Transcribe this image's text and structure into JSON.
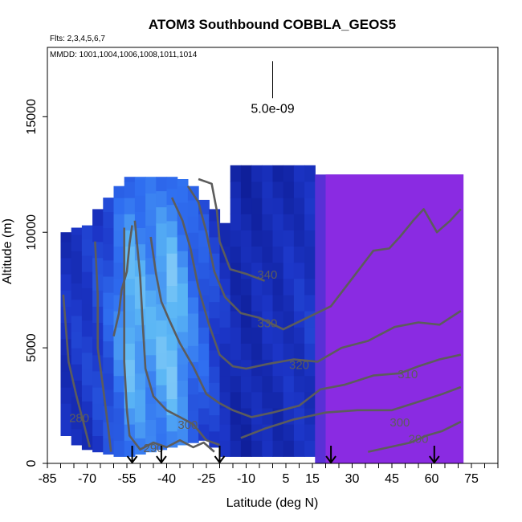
{
  "chart_data": {
    "type": "heatmap",
    "title": "ATOM3 Southbound COBBLA_GEOS5",
    "subtitle_flights": "Flts: 2,3,4,5,6,7",
    "subtitle_dates": "MMDD: 1001,1004,1006,1008,1011,1014",
    "xlabel": "Latitude (deg N)",
    "ylabel": "Altitude (m)",
    "xlim": [
      -85,
      85
    ],
    "ylim": [
      0,
      18000
    ],
    "x_ticks": [
      -85,
      -70,
      -55,
      -40,
      -25,
      -10,
      5,
      15,
      30,
      45,
      60,
      75
    ],
    "x_tick_labels": [
      "-85",
      "-70",
      "-55",
      "-40",
      "-25",
      "-10",
      "5",
      "15",
      "30",
      "45",
      "60",
      "75"
    ],
    "x_minor_ticks": [
      -80,
      -75,
      -65,
      -60,
      -50,
      -45,
      -35,
      -30,
      -20,
      -15,
      -5,
      0,
      10,
      20,
      25,
      35,
      40,
      50,
      55,
      65,
      70,
      80,
      85
    ],
    "y_ticks": [
      0,
      5000,
      10000,
      15000
    ],
    "y_tick_labels": [
      "0",
      "5000",
      "10000",
      "15000"
    ],
    "scale_bar_label": "5.0e-09",
    "scale_bar_lat": 0,
    "scale_bar_range": [
      15800,
      17400
    ],
    "profile_arrows_lat": [
      -53,
      -42,
      -20,
      22,
      61
    ],
    "colors": {
      "very_low": "#0f1f9a",
      "low": "#1c36c8",
      "mid": "#2f6ef0",
      "high": "#5ab6f5",
      "very_high": "#c8ecfb",
      "north": "#8a2be2",
      "contour": "#5c5c5c"
    },
    "contour_labels": [
      {
        "text": "340",
        "lat": -2,
        "alt": 8200
      },
      {
        "text": "330",
        "lat": -2,
        "alt": 6100
      },
      {
        "text": "320",
        "lat": 10,
        "alt": 4300
      },
      {
        "text": "310",
        "lat": 51,
        "alt": 3900
      },
      {
        "text": "300",
        "lat": -32,
        "alt": 1700
      },
      {
        "text": "300",
        "lat": 48,
        "alt": 1800
      },
      {
        "text": "290",
        "lat": -45,
        "alt": 700
      },
      {
        "text": "290",
        "lat": 55,
        "alt": 1100
      },
      {
        "text": "280",
        "lat": -73,
        "alt": 2000
      }
    ],
    "contours": [
      {
        "level": 280,
        "points": [
          [
            -79,
            7300
          ],
          [
            -77,
            4400
          ],
          [
            -74,
            2900
          ],
          [
            -71,
            1600
          ],
          [
            -69,
            700
          ]
        ]
      },
      {
        "level": 280,
        "points": [
          [
            -67,
            9600
          ],
          [
            -66,
            7300
          ],
          [
            -66,
            5000
          ],
          [
            -64,
            3300
          ],
          [
            -62,
            1500
          ],
          [
            -61,
            500
          ]
        ]
      },
      {
        "level": 290,
        "points": [
          [
            -56,
            10200
          ],
          [
            -56,
            7300
          ],
          [
            -56,
            4400
          ],
          [
            -55,
            2300
          ],
          [
            -54,
            1200
          ],
          [
            -50,
            600
          ],
          [
            -45,
            900
          ],
          [
            -40,
            700
          ],
          [
            -35,
            1000
          ],
          [
            -30,
            700
          ],
          [
            -26,
            900
          ],
          [
            -22,
            500
          ]
        ]
      },
      {
        "level": 290,
        "points": [
          [
            36,
            500
          ],
          [
            44,
            700
          ],
          [
            52,
            900
          ],
          [
            58,
            1200
          ],
          [
            64,
            1400
          ],
          [
            71,
            1800
          ]
        ]
      },
      {
        "level": 300,
        "points": [
          [
            -52,
            10500
          ],
          [
            -50,
            8100
          ],
          [
            -49,
            6000
          ],
          [
            -48,
            4100
          ],
          [
            -45,
            2900
          ],
          [
            -40,
            2300
          ],
          [
            -35,
            2000
          ],
          [
            -30,
            1700
          ],
          [
            -25,
            1000
          ],
          [
            -20,
            800
          ]
        ]
      },
      {
        "level": 300,
        "points": [
          [
            -12,
            1100
          ],
          [
            -3,
            1500
          ],
          [
            8,
            1900
          ],
          [
            20,
            2200
          ],
          [
            32,
            2300
          ],
          [
            45,
            2300
          ],
          [
            56,
            2700
          ],
          [
            64,
            3000
          ],
          [
            71,
            3300
          ]
        ]
      },
      {
        "level": 310,
        "points": [
          [
            -46,
            9800
          ],
          [
            -44,
            8200
          ],
          [
            -42,
            7000
          ],
          [
            -39,
            6200
          ],
          [
            -35,
            5200
          ],
          [
            -30,
            4200
          ],
          [
            -25,
            3000
          ],
          [
            -20,
            2600
          ],
          [
            -15,
            2300
          ],
          [
            -8,
            2000
          ],
          [
            0,
            2200
          ],
          [
            10,
            2500
          ],
          [
            18,
            3200
          ],
          [
            27,
            3400
          ],
          [
            38,
            3800
          ],
          [
            48,
            3900
          ],
          [
            55,
            4200
          ],
          [
            63,
            4500
          ],
          [
            71,
            4700
          ]
        ]
      },
      {
        "level": 320,
        "points": [
          [
            -38,
            11500
          ],
          [
            -34,
            10500
          ],
          [
            -31,
            9300
          ],
          [
            -28,
            7600
          ],
          [
            -24,
            6000
          ],
          [
            -20,
            4700
          ],
          [
            -15,
            4200
          ],
          [
            -10,
            4100
          ],
          [
            -2,
            4300
          ],
          [
            8,
            4500
          ],
          [
            17,
            4400
          ],
          [
            26,
            5000
          ],
          [
            36,
            5300
          ],
          [
            46,
            5900
          ],
          [
            55,
            6100
          ],
          [
            63,
            6000
          ],
          [
            71,
            6600
          ]
        ]
      },
      {
        "level": 330,
        "points": [
          [
            -32,
            12000
          ],
          [
            -28,
            11300
          ],
          [
            -25,
            10000
          ],
          [
            -22,
            8300
          ],
          [
            -18,
            7200
          ],
          [
            -12,
            6500
          ],
          [
            -5,
            6300
          ],
          [
            4,
            5800
          ],
          [
            13,
            6300
          ],
          [
            22,
            6800
          ],
          [
            30,
            8000
          ],
          [
            38,
            9200
          ],
          [
            44,
            9300
          ],
          [
            48,
            9800
          ],
          [
            53,
            10500
          ],
          [
            57,
            11000
          ],
          [
            62,
            10000
          ],
          [
            67,
            10500
          ],
          [
            71,
            11000
          ]
        ]
      },
      {
        "level": 340,
        "points": [
          [
            -28,
            12300
          ],
          [
            -23,
            12100
          ],
          [
            -21,
            10900
          ],
          [
            -20,
            9600
          ],
          [
            -16,
            8400
          ],
          [
            -10,
            8200
          ],
          [
            -3,
            7900
          ]
        ]
      },
      {
        "level": 340,
        "points": [
          [
            -53,
            10300
          ],
          [
            -54,
            9500
          ],
          [
            -55,
            8300
          ],
          [
            -57,
            7500
          ],
          [
            -58,
            6500
          ],
          [
            -60,
            5500
          ]
        ]
      }
    ],
    "columns": [
      {
        "lat": -78,
        "bottom": 1200,
        "top": 10000,
        "level": 0.18
      },
      {
        "lat": -74,
        "bottom": 800,
        "top": 10200,
        "level": 0.22
      },
      {
        "lat": -70,
        "bottom": 600,
        "top": 10300,
        "level": 0.25
      },
      {
        "lat": -66,
        "bottom": 500,
        "top": 11000,
        "level": 0.3
      },
      {
        "lat": -62,
        "bottom": 400,
        "top": 11500,
        "level": 0.38
      },
      {
        "lat": -58,
        "bottom": 300,
        "top": 12000,
        "level": 0.52
      },
      {
        "lat": -54,
        "bottom": 300,
        "top": 12400,
        "level": 0.7
      },
      {
        "lat": -50,
        "bottom": 400,
        "top": 12400,
        "level": 0.66
      },
      {
        "lat": -46,
        "bottom": 500,
        "top": 12400,
        "level": 0.62
      },
      {
        "lat": -42,
        "bottom": 600,
        "top": 12400,
        "level": 0.68
      },
      {
        "lat": -38,
        "bottom": 700,
        "top": 12400,
        "level": 0.74
      },
      {
        "lat": -34,
        "bottom": 800,
        "top": 12300,
        "level": 0.62
      },
      {
        "lat": -30,
        "bottom": 900,
        "top": 12000,
        "level": 0.48
      },
      {
        "lat": -26,
        "bottom": 1000,
        "top": 11400,
        "level": 0.4
      },
      {
        "lat": -22,
        "bottom": 700,
        "top": 11000,
        "level": 0.3
      },
      {
        "lat": -18,
        "bottom": 300,
        "top": 10400,
        "level": 0.2
      },
      {
        "lat": -14,
        "bottom": 300,
        "top": 12900,
        "level": 0.12
      },
      {
        "lat": -10,
        "bottom": 300,
        "top": 12900,
        "level": 0.1
      },
      {
        "lat": -6,
        "bottom": 300,
        "top": 12900,
        "level": 0.13
      },
      {
        "lat": -2,
        "bottom": 300,
        "top": 12900,
        "level": 0.16
      },
      {
        "lat": 2,
        "bottom": 300,
        "top": 12900,
        "level": 0.15
      },
      {
        "lat": 6,
        "bottom": 300,
        "top": 12900,
        "level": 0.18
      },
      {
        "lat": 10,
        "bottom": 300,
        "top": 12900,
        "level": 0.2
      },
      {
        "lat": 14,
        "bottom": 300,
        "top": 12900,
        "level": 0.22
      }
    ],
    "north_region": {
      "lat_from": 16,
      "lat_to": 72,
      "bottom": 0,
      "top": 12500,
      "edge_lat": 20
    }
  }
}
